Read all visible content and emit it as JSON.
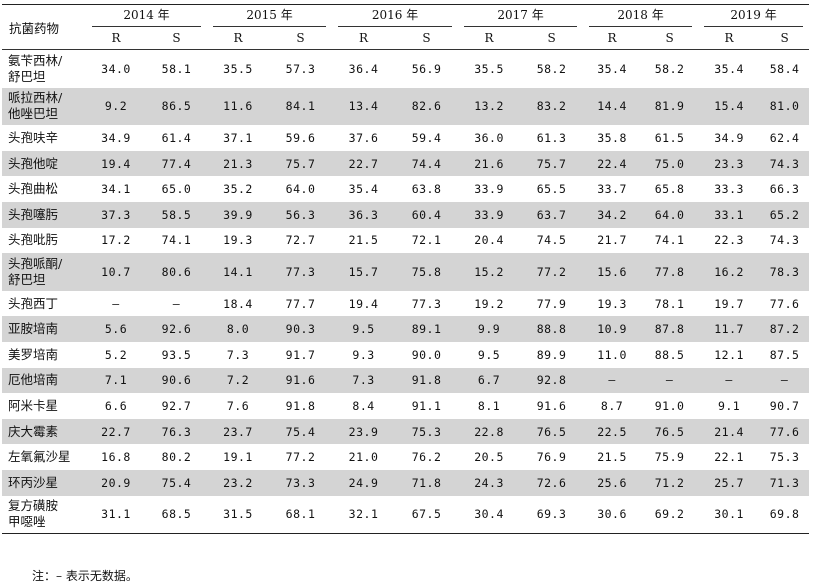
{
  "table": {
    "drug_header": "抗菌药物",
    "years": [
      "2014 年",
      "2015 年",
      "2016 年",
      "2017 年",
      "2018 年",
      "2019 年"
    ],
    "sub_headers": [
      "R",
      "S"
    ],
    "rows": [
      {
        "drug": [
          "氨苄西林/",
          "舒巴坦"
        ],
        "values": [
          "34.0",
          "58.1",
          "35.5",
          "57.3",
          "36.4",
          "56.9",
          "35.5",
          "58.2",
          "35.4",
          "58.2",
          "35.4",
          "58.4"
        ]
      },
      {
        "drug": [
          "哌拉西林/",
          "他唑巴坦"
        ],
        "values": [
          "9.2",
          "86.5",
          "11.6",
          "84.1",
          "13.4",
          "82.6",
          "13.2",
          "83.2",
          "14.4",
          "81.9",
          "15.4",
          "81.0"
        ]
      },
      {
        "drug": [
          "头孢呋辛"
        ],
        "values": [
          "34.9",
          "61.4",
          "37.1",
          "59.6",
          "37.6",
          "59.4",
          "36.0",
          "61.3",
          "35.8",
          "61.5",
          "34.9",
          "62.4"
        ]
      },
      {
        "drug": [
          "头孢他啶"
        ],
        "values": [
          "19.4",
          "77.4",
          "21.3",
          "75.7",
          "22.7",
          "74.4",
          "21.6",
          "75.7",
          "22.4",
          "75.0",
          "23.3",
          "74.3"
        ]
      },
      {
        "drug": [
          "头孢曲松"
        ],
        "values": [
          "34.1",
          "65.0",
          "35.2",
          "64.0",
          "35.4",
          "63.8",
          "33.9",
          "65.5",
          "33.7",
          "65.8",
          "33.3",
          "66.3"
        ]
      },
      {
        "drug": [
          "头孢噻肟"
        ],
        "values": [
          "37.3",
          "58.5",
          "39.9",
          "56.3",
          "36.3",
          "60.4",
          "33.9",
          "63.7",
          "34.2",
          "64.0",
          "33.1",
          "65.2"
        ]
      },
      {
        "drug": [
          "头孢吡肟"
        ],
        "values": [
          "17.2",
          "74.1",
          "19.3",
          "72.7",
          "21.5",
          "72.1",
          "20.4",
          "74.5",
          "21.7",
          "74.1",
          "22.3",
          "74.3"
        ]
      },
      {
        "drug": [
          "头孢哌酮/",
          "舒巴坦"
        ],
        "values": [
          "10.7",
          "80.6",
          "14.1",
          "77.3",
          "15.7",
          "75.8",
          "15.2",
          "77.2",
          "15.6",
          "77.8",
          "16.2",
          "78.3"
        ]
      },
      {
        "drug": [
          "头孢西丁"
        ],
        "values": [
          "–",
          "–",
          "18.4",
          "77.7",
          "19.4",
          "77.3",
          "19.2",
          "77.9",
          "19.3",
          "78.1",
          "19.7",
          "77.6"
        ]
      },
      {
        "drug": [
          "亚胺培南"
        ],
        "values": [
          "5.6",
          "92.6",
          "8.0",
          "90.3",
          "9.5",
          "89.1",
          "9.9",
          "88.8",
          "10.9",
          "87.8",
          "11.7",
          "87.2"
        ]
      },
      {
        "drug": [
          "美罗培南"
        ],
        "values": [
          "5.2",
          "93.5",
          "7.3",
          "91.7",
          "9.3",
          "90.0",
          "9.5",
          "89.9",
          "11.0",
          "88.5",
          "12.1",
          "87.5"
        ]
      },
      {
        "drug": [
          "厄他培南"
        ],
        "values": [
          "7.1",
          "90.6",
          "7.2",
          "91.6",
          "7.3",
          "91.8",
          "6.7",
          "92.8",
          "–",
          "–",
          "–",
          "–"
        ]
      },
      {
        "drug": [
          "阿米卡星"
        ],
        "values": [
          "6.6",
          "92.7",
          "7.6",
          "91.8",
          "8.4",
          "91.1",
          "8.1",
          "91.6",
          "8.7",
          "91.0",
          "9.1",
          "90.7"
        ]
      },
      {
        "drug": [
          "庆大霉素"
        ],
        "values": [
          "22.7",
          "76.3",
          "23.7",
          "75.4",
          "23.9",
          "75.3",
          "22.8",
          "76.5",
          "22.5",
          "76.5",
          "21.4",
          "77.6"
        ]
      },
      {
        "drug": [
          "左氧氟沙星"
        ],
        "values": [
          "16.8",
          "80.2",
          "19.1",
          "77.2",
          "21.0",
          "76.2",
          "20.5",
          "76.9",
          "21.5",
          "75.9",
          "22.1",
          "75.3"
        ]
      },
      {
        "drug": [
          "环丙沙星"
        ],
        "values": [
          "20.9",
          "75.4",
          "23.2",
          "73.3",
          "24.9",
          "71.8",
          "24.3",
          "72.6",
          "25.6",
          "71.2",
          "25.7",
          "71.3"
        ]
      },
      {
        "drug": [
          "复方磺胺",
          "甲噁唑"
        ],
        "values": [
          "31.1",
          "68.5",
          "31.5",
          "68.1",
          "32.1",
          "67.5",
          "30.4",
          "69.3",
          "30.6",
          "69.2",
          "30.1",
          "69.8"
        ]
      }
    ]
  },
  "note": "注：– 表示无数据。"
}
